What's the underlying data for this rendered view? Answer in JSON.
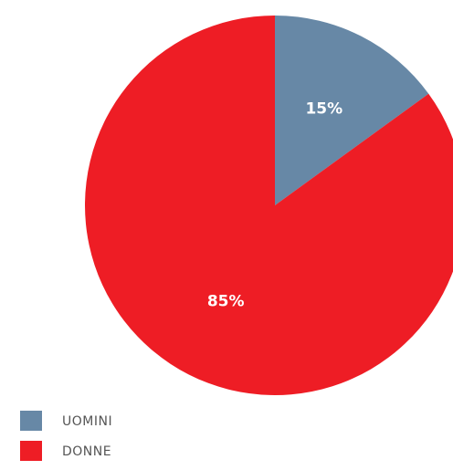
{
  "chart_data": {
    "type": "pie",
    "categories": [
      "UOMINI",
      "DONNE"
    ],
    "values": [
      15,
      85
    ],
    "value_labels": [
      "15%",
      "85%"
    ],
    "colors": [
      "#6788a6",
      "#ee1d25"
    ],
    "legend": "bottom-left"
  }
}
